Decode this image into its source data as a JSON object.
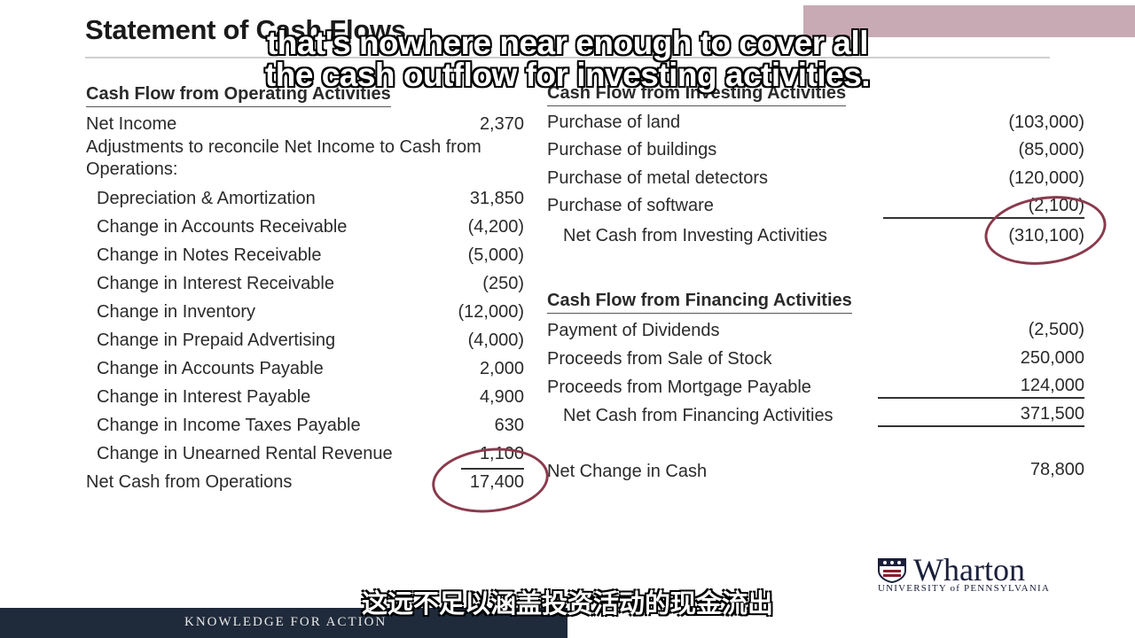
{
  "slide": {
    "title": "Statement of Cash Flows",
    "subtitle_en_line1": "that's nowhere near enough to cover all",
    "subtitle_en_line2": "the cash outflow for investing activities.",
    "subtitle_zh": "这远不足以涵盖投资活动的现金流出",
    "footer": "KNOWLEDGE FOR ACTION",
    "logo_name": "Wharton",
    "logo_sub": "UNIVERSITY of PENNSYLVANIA"
  },
  "operating": {
    "heading": "Cash Flow from Operating Activities",
    "net_income_label": "Net Income",
    "net_income_value": "2,370",
    "adjust_line1": "Adjustments to reconcile Net Income to Cash from",
    "adjust_line2": "Operations:",
    "items": [
      {
        "label": "Depreciation & Amortization",
        "value": "31,850"
      },
      {
        "label": "Change in Accounts Receivable",
        "value": "(4,200)"
      },
      {
        "label": "Change in Notes Receivable",
        "value": "(5,000)"
      },
      {
        "label": "Change in Interest Receivable",
        "value": "(250)"
      },
      {
        "label": "Change in Inventory",
        "value": "(12,000)"
      },
      {
        "label": "Change in Prepaid Advertising",
        "value": "(4,000)"
      },
      {
        "label": "Change in Accounts Payable",
        "value": "2,000"
      },
      {
        "label": "Change in Interest Payable",
        "value": "4,900"
      },
      {
        "label": "Change in Income Taxes Payable",
        "value": "630"
      },
      {
        "label": "Change in Unearned Rental Revenue",
        "value": "1,100"
      }
    ],
    "total_label": "Net Cash from Operations",
    "total_value": "17,400"
  },
  "investing": {
    "heading": "Cash Flow from Investing Activities",
    "items": [
      {
        "label": "Purchase of land",
        "value": "(103,000)"
      },
      {
        "label": "Purchase of buildings",
        "value": "(85,000)"
      },
      {
        "label": "Purchase of metal detectors",
        "value": "(120,000)"
      },
      {
        "label": "Purchase of software",
        "value": "(2,100)"
      }
    ],
    "total_label": "Net Cash from Investing Activities",
    "total_value": "(310,100)"
  },
  "financing": {
    "heading": "Cash Flow from Financing Activities",
    "items": [
      {
        "label": "Payment of Dividends",
        "value": "(2,500)"
      },
      {
        "label": "Proceeds from Sale of Stock",
        "value": "250,000"
      },
      {
        "label": "Proceeds from Mortgage Payable",
        "value": "124,000"
      }
    ],
    "total_label": "Net Cash from Financing Activities",
    "total_value": "371,500"
  },
  "net_change": {
    "label": "Net Change in Cash",
    "value": "78,800"
  }
}
